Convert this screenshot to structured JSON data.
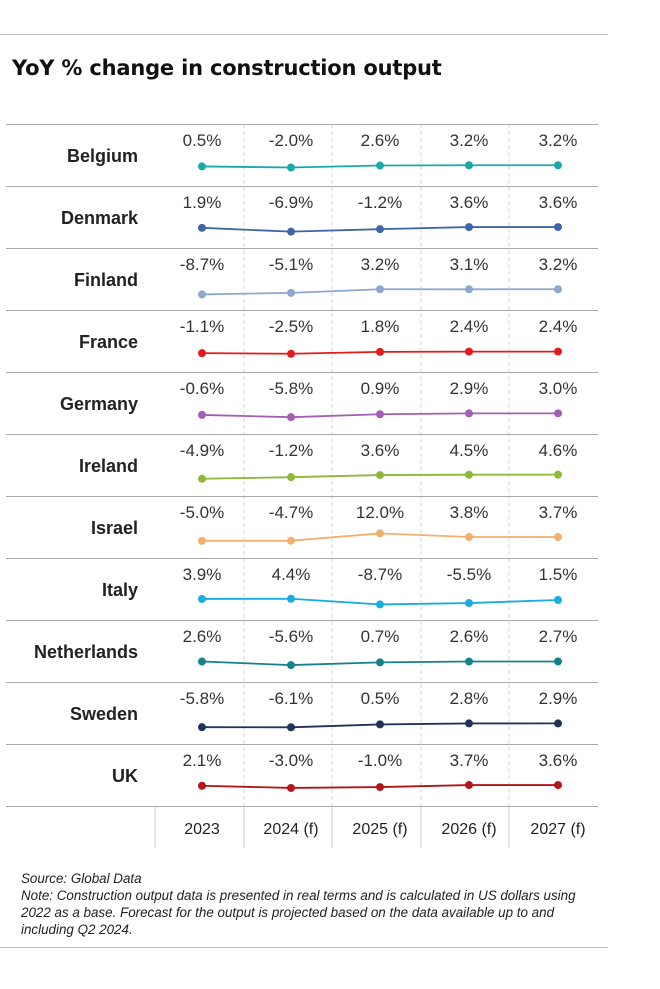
{
  "title": "YoY % change in construction output",
  "chart_data": {
    "type": "line",
    "title": "YoY % change in construction output",
    "categories": [
      "2023",
      "2024 (f)",
      "2025 (f)",
      "2026 (f)",
      "2027 (f)"
    ],
    "ylim": [
      -10,
      13
    ],
    "grid": true,
    "series": [
      {
        "name": "Belgium",
        "values": [
          0.5,
          -2.0,
          2.6,
          3.2,
          3.2
        ],
        "labels": [
          "0.5%",
          "-2.0%",
          "2.6%",
          "3.2%",
          "3.2%"
        ],
        "color": "#1aa8ad"
      },
      {
        "name": "Denmark",
        "values": [
          1.9,
          -6.9,
          -1.2,
          3.6,
          3.6
        ],
        "labels": [
          "1.9%",
          "-6.9%",
          "-1.2%",
          "3.6%",
          "3.6%"
        ],
        "color": "#3f64a8"
      },
      {
        "name": "Finland",
        "values": [
          -8.7,
          -5.1,
          3.2,
          3.1,
          3.2
        ],
        "labels": [
          "-8.7%",
          "-5.1%",
          "3.2%",
          "3.1%",
          "3.2%"
        ],
        "color": "#8fa7cf"
      },
      {
        "name": "France",
        "values": [
          -1.1,
          -2.5,
          1.8,
          2.4,
          2.4
        ],
        "labels": [
          "-1.1%",
          "-2.5%",
          "1.8%",
          "2.4%",
          "2.4%"
        ],
        "color": "#e21b1b"
      },
      {
        "name": "Germany",
        "values": [
          -0.6,
          -5.8,
          0.9,
          2.9,
          3.0
        ],
        "labels": [
          "-0.6%",
          "-5.8%",
          "0.9%",
          "2.9%",
          "3.0%"
        ],
        "color": "#a35eb5"
      },
      {
        "name": "Ireland",
        "values": [
          -4.9,
          -1.2,
          3.6,
          4.5,
          4.6
        ],
        "labels": [
          "-4.9%",
          "-1.2%",
          "3.6%",
          "4.5%",
          "4.6%"
        ],
        "color": "#8db83a"
      },
      {
        "name": "Israel",
        "values": [
          -5.0,
          -4.7,
          12.0,
          3.8,
          3.7
        ],
        "labels": [
          "-5.0%",
          "-4.7%",
          "12.0%",
          "3.8%",
          "3.7%"
        ],
        "color": "#f2b06e"
      },
      {
        "name": "Italy",
        "values": [
          3.9,
          4.4,
          -8.7,
          -5.5,
          1.5
        ],
        "labels": [
          "3.9%",
          "4.4%",
          "-8.7%",
          "-5.5%",
          "1.5%"
        ],
        "color": "#19ace0"
      },
      {
        "name": "Netherlands",
        "values": [
          2.6,
          -5.6,
          0.7,
          2.6,
          2.7
        ],
        "labels": [
          "2.6%",
          "-5.6%",
          "0.7%",
          "2.6%",
          "2.7%"
        ],
        "color": "#16818a"
      },
      {
        "name": "Sweden",
        "values": [
          -5.8,
          -6.1,
          0.5,
          2.8,
          2.9
        ],
        "labels": [
          "-5.8%",
          "-6.1%",
          "0.5%",
          "2.8%",
          "2.9%"
        ],
        "color": "#1f3457"
      },
      {
        "name": "UK",
        "values": [
          2.1,
          -3.0,
          -1.0,
          3.7,
          3.6
        ],
        "labels": [
          "2.1%",
          "-3.0%",
          "-1.0%",
          "3.7%",
          "3.6%"
        ],
        "color": "#b4141a"
      }
    ]
  },
  "notes": {
    "source": "Source: Global Data",
    "note": "Note: Construction output data is presented in real terms and is calculated in US dollars using 2022 as a base. Forecast for the output is projected based on the data available up to and including Q2 2024."
  }
}
